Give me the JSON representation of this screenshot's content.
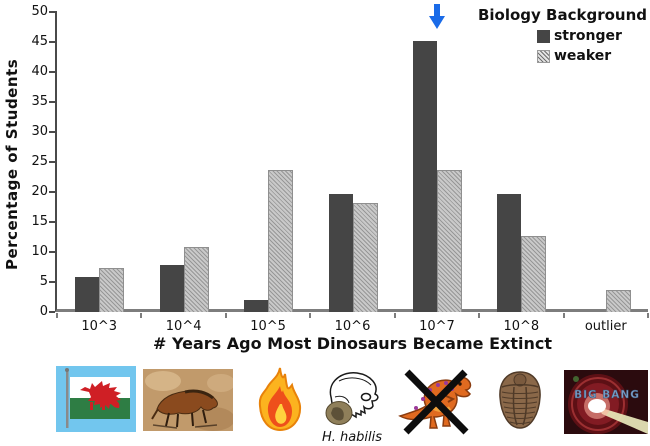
{
  "chart_data": {
    "type": "bar",
    "categories": [
      "10^3",
      "10^4",
      "10^5",
      "10^6",
      "10^7",
      "10^8",
      "outlier"
    ],
    "series": [
      {
        "name": "stronger",
        "style": "solid",
        "color": "#454545",
        "values": [
          5.9,
          7.8,
          2.0,
          19.6,
          45.1,
          19.6,
          0
        ]
      },
      {
        "name": "weaker",
        "style": "hatched",
        "color": "#c9c9c9",
        "values": [
          7.3,
          10.9,
          23.6,
          18.2,
          23.6,
          12.7,
          3.6
        ]
      }
    ],
    "xlabel": "# Years Ago Most Dinosaurs Became Extinct",
    "ylabel": "Percentage of Students",
    "ylim": [
      0,
      50
    ],
    "yticks": [
      0,
      5,
      10,
      15,
      20,
      25,
      30,
      35,
      40,
      45,
      50
    ],
    "grid": false,
    "legend": {
      "title": "Biology Background",
      "position": "top-right",
      "entries": [
        "stronger",
        "weaker"
      ]
    },
    "annotation": {
      "type": "down-arrow",
      "color": "#1a6be8",
      "target_category": "10^7"
    }
  },
  "icons": [
    {
      "name": "welsh-flag"
    },
    {
      "name": "cave-painting"
    },
    {
      "name": "fire"
    },
    {
      "name": "h-habilis-skull",
      "caption": "H. habilis"
    },
    {
      "name": "crossed-out-dinosaur"
    },
    {
      "name": "trilobite"
    },
    {
      "name": "big-bang",
      "text": "BIG BANG"
    }
  ]
}
